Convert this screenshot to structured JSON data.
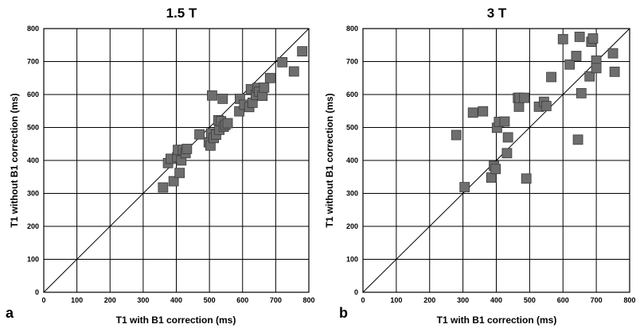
{
  "chart_data": [
    {
      "type": "scatter",
      "panel_label": "a",
      "title": "1.5 T",
      "xlabel": "T1 with B1 correction (ms)",
      "ylabel": "T1 without B1 correction (ms)",
      "xlim": [
        0,
        800
      ],
      "ylim": [
        0,
        800
      ],
      "xticks": [
        "0",
        "100",
        "200",
        "300",
        "400",
        "500",
        "600",
        "700",
        "800"
      ],
      "yticks": [
        "0",
        "100",
        "200",
        "300",
        "400",
        "500",
        "600",
        "700",
        "800"
      ],
      "grid": true,
      "identity_line": true,
      "marker": "square",
      "marker_color": "#6e6e6e",
      "points": [
        [
          360,
          318
        ],
        [
          375,
          392
        ],
        [
          383,
          405
        ],
        [
          392,
          337
        ],
        [
          403,
          410
        ],
        [
          405,
          432
        ],
        [
          410,
          362
        ],
        [
          415,
          400
        ],
        [
          420,
          432
        ],
        [
          428,
          422
        ],
        [
          432,
          435
        ],
        [
          470,
          479
        ],
        [
          498,
          455
        ],
        [
          503,
          445
        ],
        [
          505,
          482
        ],
        [
          508,
          597
        ],
        [
          513,
          468
        ],
        [
          520,
          478
        ],
        [
          527,
          522
        ],
        [
          530,
          493
        ],
        [
          535,
          519
        ],
        [
          540,
          587
        ],
        [
          543,
          502
        ],
        [
          548,
          508
        ],
        [
          555,
          513
        ],
        [
          590,
          549
        ],
        [
          592,
          587
        ],
        [
          605,
          569
        ],
        [
          620,
          562
        ],
        [
          625,
          616
        ],
        [
          630,
          575
        ],
        [
          640,
          599
        ],
        [
          645,
          620
        ],
        [
          650,
          609
        ],
        [
          660,
          596
        ],
        [
          665,
          621
        ],
        [
          683,
          650
        ],
        [
          720,
          698
        ],
        [
          755,
          670
        ],
        [
          780,
          731
        ]
      ]
    },
    {
      "type": "scatter",
      "panel_label": "b",
      "title": "3 T",
      "xlabel": "T1 with B1 correction (ms)",
      "ylabel": "T1 without B1 correction (ms)",
      "xlim": [
        0,
        800
      ],
      "ylim": [
        0,
        800
      ],
      "xticks": [
        "0",
        "100",
        "200",
        "300",
        "400",
        "500",
        "600",
        "700",
        "800"
      ],
      "yticks": [
        "0",
        "100",
        "200",
        "300",
        "400",
        "500",
        "600",
        "700",
        "800"
      ],
      "grid": true,
      "identity_line": true,
      "marker": "square",
      "marker_color": "#6e6e6e",
      "points": [
        [
          280,
          477
        ],
        [
          305,
          319
        ],
        [
          330,
          545
        ],
        [
          360,
          549
        ],
        [
          385,
          348
        ],
        [
          393,
          383
        ],
        [
          398,
          374
        ],
        [
          402,
          499
        ],
        [
          408,
          517
        ],
        [
          425,
          518
        ],
        [
          432,
          422
        ],
        [
          435,
          470
        ],
        [
          465,
          590
        ],
        [
          468,
          563
        ],
        [
          470,
          590
        ],
        [
          484,
          590
        ],
        [
          490,
          345
        ],
        [
          528,
          563
        ],
        [
          543,
          578
        ],
        [
          550,
          565
        ],
        [
          565,
          653
        ],
        [
          600,
          768
        ],
        [
          620,
          691
        ],
        [
          640,
          717
        ],
        [
          645,
          463
        ],
        [
          650,
          775
        ],
        [
          655,
          604
        ],
        [
          680,
          655
        ],
        [
          685,
          760
        ],
        [
          690,
          770
        ],
        [
          700,
          703
        ],
        [
          700,
          680
        ],
        [
          750,
          725
        ],
        [
          755,
          669
        ]
      ]
    }
  ]
}
